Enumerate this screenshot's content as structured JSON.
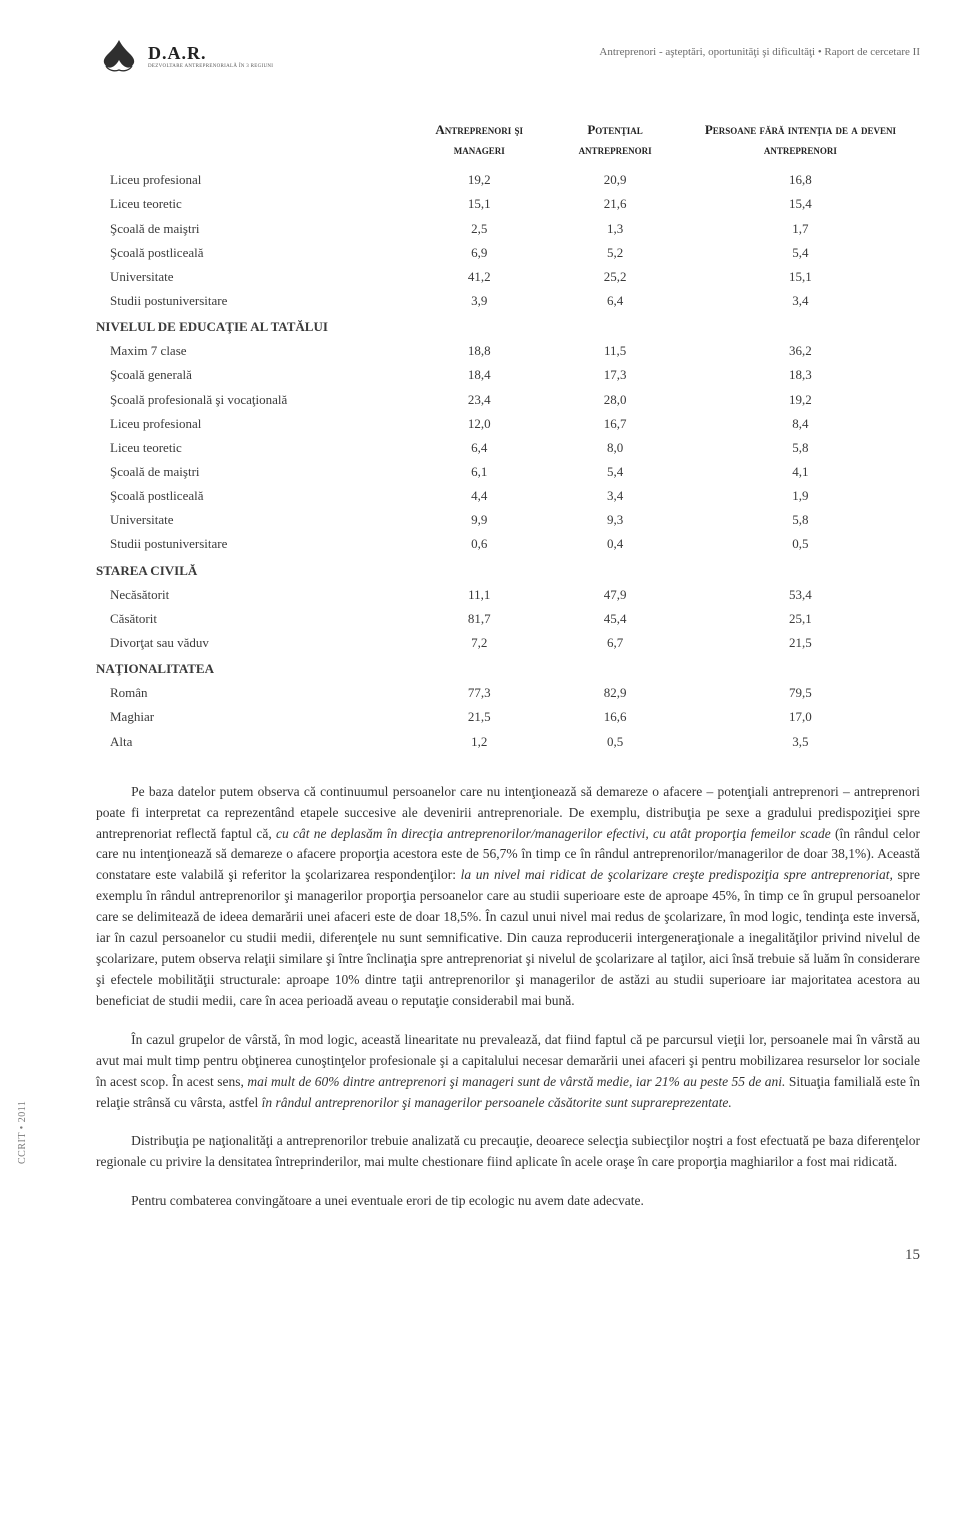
{
  "header": {
    "logo_main": "D.A.R.",
    "logo_sub": "DEZVOLTARE ANTREPRENORIALĂ ÎN 3 REGIUNI",
    "report_title": "Antreprenori - aşteptări, oportunităţi şi dificultăţi • Raport de cercetare II"
  },
  "table": {
    "columns": [
      {
        "key": "label",
        "header": ""
      },
      {
        "key": "c1",
        "header": "Antreprenori şi manageri"
      },
      {
        "key": "c2",
        "header": "Potenţial antreprenori"
      },
      {
        "key": "c3",
        "header": "Persoane fără intenţia de a deveni antreprenori"
      }
    ],
    "rows": [
      {
        "type": "data",
        "label": "Liceu profesional",
        "c1": "19,2",
        "c2": "20,9",
        "c3": "16,8"
      },
      {
        "type": "data",
        "label": "Liceu teoretic",
        "c1": "15,1",
        "c2": "21,6",
        "c3": "15,4"
      },
      {
        "type": "data",
        "label": "Şcoală de maiştri",
        "c1": "2,5",
        "c2": "1,3",
        "c3": "1,7"
      },
      {
        "type": "data",
        "label": "Şcoală postliceală",
        "c1": "6,9",
        "c2": "5,2",
        "c3": "5,4"
      },
      {
        "type": "data",
        "label": "Universitate",
        "c1": "41,2",
        "c2": "25,2",
        "c3": "15,1"
      },
      {
        "type": "data",
        "label": "Studii postuniversitare",
        "c1": "3,9",
        "c2": "6,4",
        "c3": "3,4"
      },
      {
        "type": "section",
        "label": "NIVELUL DE EDUCAŢIE AL TATĂLUI"
      },
      {
        "type": "data",
        "label": "Maxim 7 clase",
        "c1": "18,8",
        "c2": "11,5",
        "c3": "36,2"
      },
      {
        "type": "data",
        "label": "Şcoală generală",
        "c1": "18,4",
        "c2": "17,3",
        "c3": "18,3"
      },
      {
        "type": "data",
        "label": "Şcoală profesională şi vocaţională",
        "c1": "23,4",
        "c2": "28,0",
        "c3": "19,2"
      },
      {
        "type": "data",
        "label": "Liceu profesional",
        "c1": "12,0",
        "c2": "16,7",
        "c3": "8,4"
      },
      {
        "type": "data",
        "label": "Liceu teoretic",
        "c1": "6,4",
        "c2": "8,0",
        "c3": "5,8"
      },
      {
        "type": "data",
        "label": "Şcoală de maiştri",
        "c1": "6,1",
        "c2": "5,4",
        "c3": "4,1"
      },
      {
        "type": "data",
        "label": "Şcoală postliceală",
        "c1": "4,4",
        "c2": "3,4",
        "c3": "1,9"
      },
      {
        "type": "data",
        "label": "Universitate",
        "c1": "9,9",
        "c2": "9,3",
        "c3": "5,8"
      },
      {
        "type": "data",
        "label": "Studii postuniversitare",
        "c1": "0,6",
        "c2": "0,4",
        "c3": "0,5"
      },
      {
        "type": "section",
        "label": "STAREA CIVILĂ"
      },
      {
        "type": "data",
        "label": "Necăsătorit",
        "c1": "11,1",
        "c2": "47,9",
        "c3": "53,4"
      },
      {
        "type": "data",
        "label": "Căsătorit",
        "c1": "81,7",
        "c2": "45,4",
        "c3": "25,1"
      },
      {
        "type": "data",
        "label": "Divorţat sau văduv",
        "c1": "7,2",
        "c2": "6,7",
        "c3": "21,5"
      },
      {
        "type": "section",
        "label": "NAŢIONALITATEA"
      },
      {
        "type": "data",
        "label": "Român",
        "c1": "77,3",
        "c2": "82,9",
        "c3": "79,5"
      },
      {
        "type": "data",
        "label": "Maghiar",
        "c1": "21,5",
        "c2": "16,6",
        "c3": "17,0"
      },
      {
        "type": "data",
        "label": "Alta",
        "c1": "1,2",
        "c2": "0,5",
        "c3": "3,5"
      }
    ]
  },
  "paragraphs": [
    {
      "segments": [
        {
          "t": "Pe baza datelor putem observa că continuumul persoanelor care nu intenţionează să demareze o afacere – potenţiali antreprenori – antreprenori poate fi interpretat ca reprezentând etapele succesive ale devenirii antreprenoriale. De exemplu, distribuţia pe sexe a gradului predispoziţiei spre antreprenoriat reflectă faptul că, ",
          "i": false
        },
        {
          "t": "cu cât ne deplasăm în direcţia antreprenorilor/managerilor efectivi, cu atât proporţia femeilor scade",
          "i": true
        },
        {
          "t": " (în rândul celor care nu intenţionează să demareze o afacere proporţia acestora este de 56,7% în timp ce în rândul antreprenorilor/managerilor de doar 38,1%). Această constatare este valabilă şi referitor la şcolarizarea respondenţilor: ",
          "i": false
        },
        {
          "t": "la un nivel mai ridicat de şcolarizare creşte predispoziţia spre antreprenoriat,",
          "i": true
        },
        {
          "t": " spre exemplu în rândul antreprenorilor şi managerilor proporţia persoanelor care au studii superioare este de aproape 45%, în timp ce în grupul persoanelor care se delimitează de ideea demarării unei afaceri este de doar 18,5%. În cazul unui nivel mai redus de şcolarizare, în mod logic, tendinţa este inversă, iar în cazul persoanelor cu studii medii, diferenţele nu sunt semnificative. Din cauza reproducerii intergeneraţionale a inegalităţilor privind nivelul de şcolarizare, putem observa relaţii similare şi între înclinaţia spre antreprenoriat şi nivelul de şcolarizare al taţilor, aici însă trebuie să luăm în considerare şi efectele mobilităţii structurale: aproape 10% dintre taţii antreprenorilor şi managerilor de astăzi au studii superioare iar majoritatea acestora au beneficiat de studii medii, care în acea perioadă aveau o reputaţie considerabil mai bună.",
          "i": false
        }
      ]
    },
    {
      "segments": [
        {
          "t": "În cazul grupelor de vârstă, în mod logic, această linearitate nu prevalează, dat fiind faptul că pe parcursul vieţii lor, persoanele mai în vârstă au avut mai mult timp pentru obţinerea cunoştinţelor profesionale şi a capitalului necesar demarării unei afaceri şi pentru mobilizarea resurselor lor sociale în acest scop. În acest sens, ",
          "i": false
        },
        {
          "t": "mai mult de 60% dintre antreprenori şi manageri sunt de vârstă medie, iar 21% au peste 55 de ani.",
          "i": true
        },
        {
          "t": " Situaţia familială este în relaţie strânsă cu vârsta, astfel ",
          "i": false
        },
        {
          "t": "în rândul antreprenorilor şi managerilor persoanele căsătorite sunt suprareprezentate.",
          "i": true
        }
      ]
    },
    {
      "segments": [
        {
          "t": "Distribuţia pe naţionalităţi a antreprenorilor trebuie analizată cu precauţie, deoarece selecţia subiecţilor noştri a fost efectuată pe baza diferenţelor regionale cu privire la densitatea întreprinderilor, mai multe chestionare fiind aplicate în acele oraşe în care proporţia maghiarilor a fost mai ridicată.",
          "i": false
        }
      ]
    },
    {
      "segments": [
        {
          "t": "Pentru combaterea convingătoare a unei eventuale erori de tip ecologic nu avem date adecvate.",
          "i": false
        }
      ]
    }
  ],
  "side_label": "CCRIT • 2011",
  "page_number": "15"
}
